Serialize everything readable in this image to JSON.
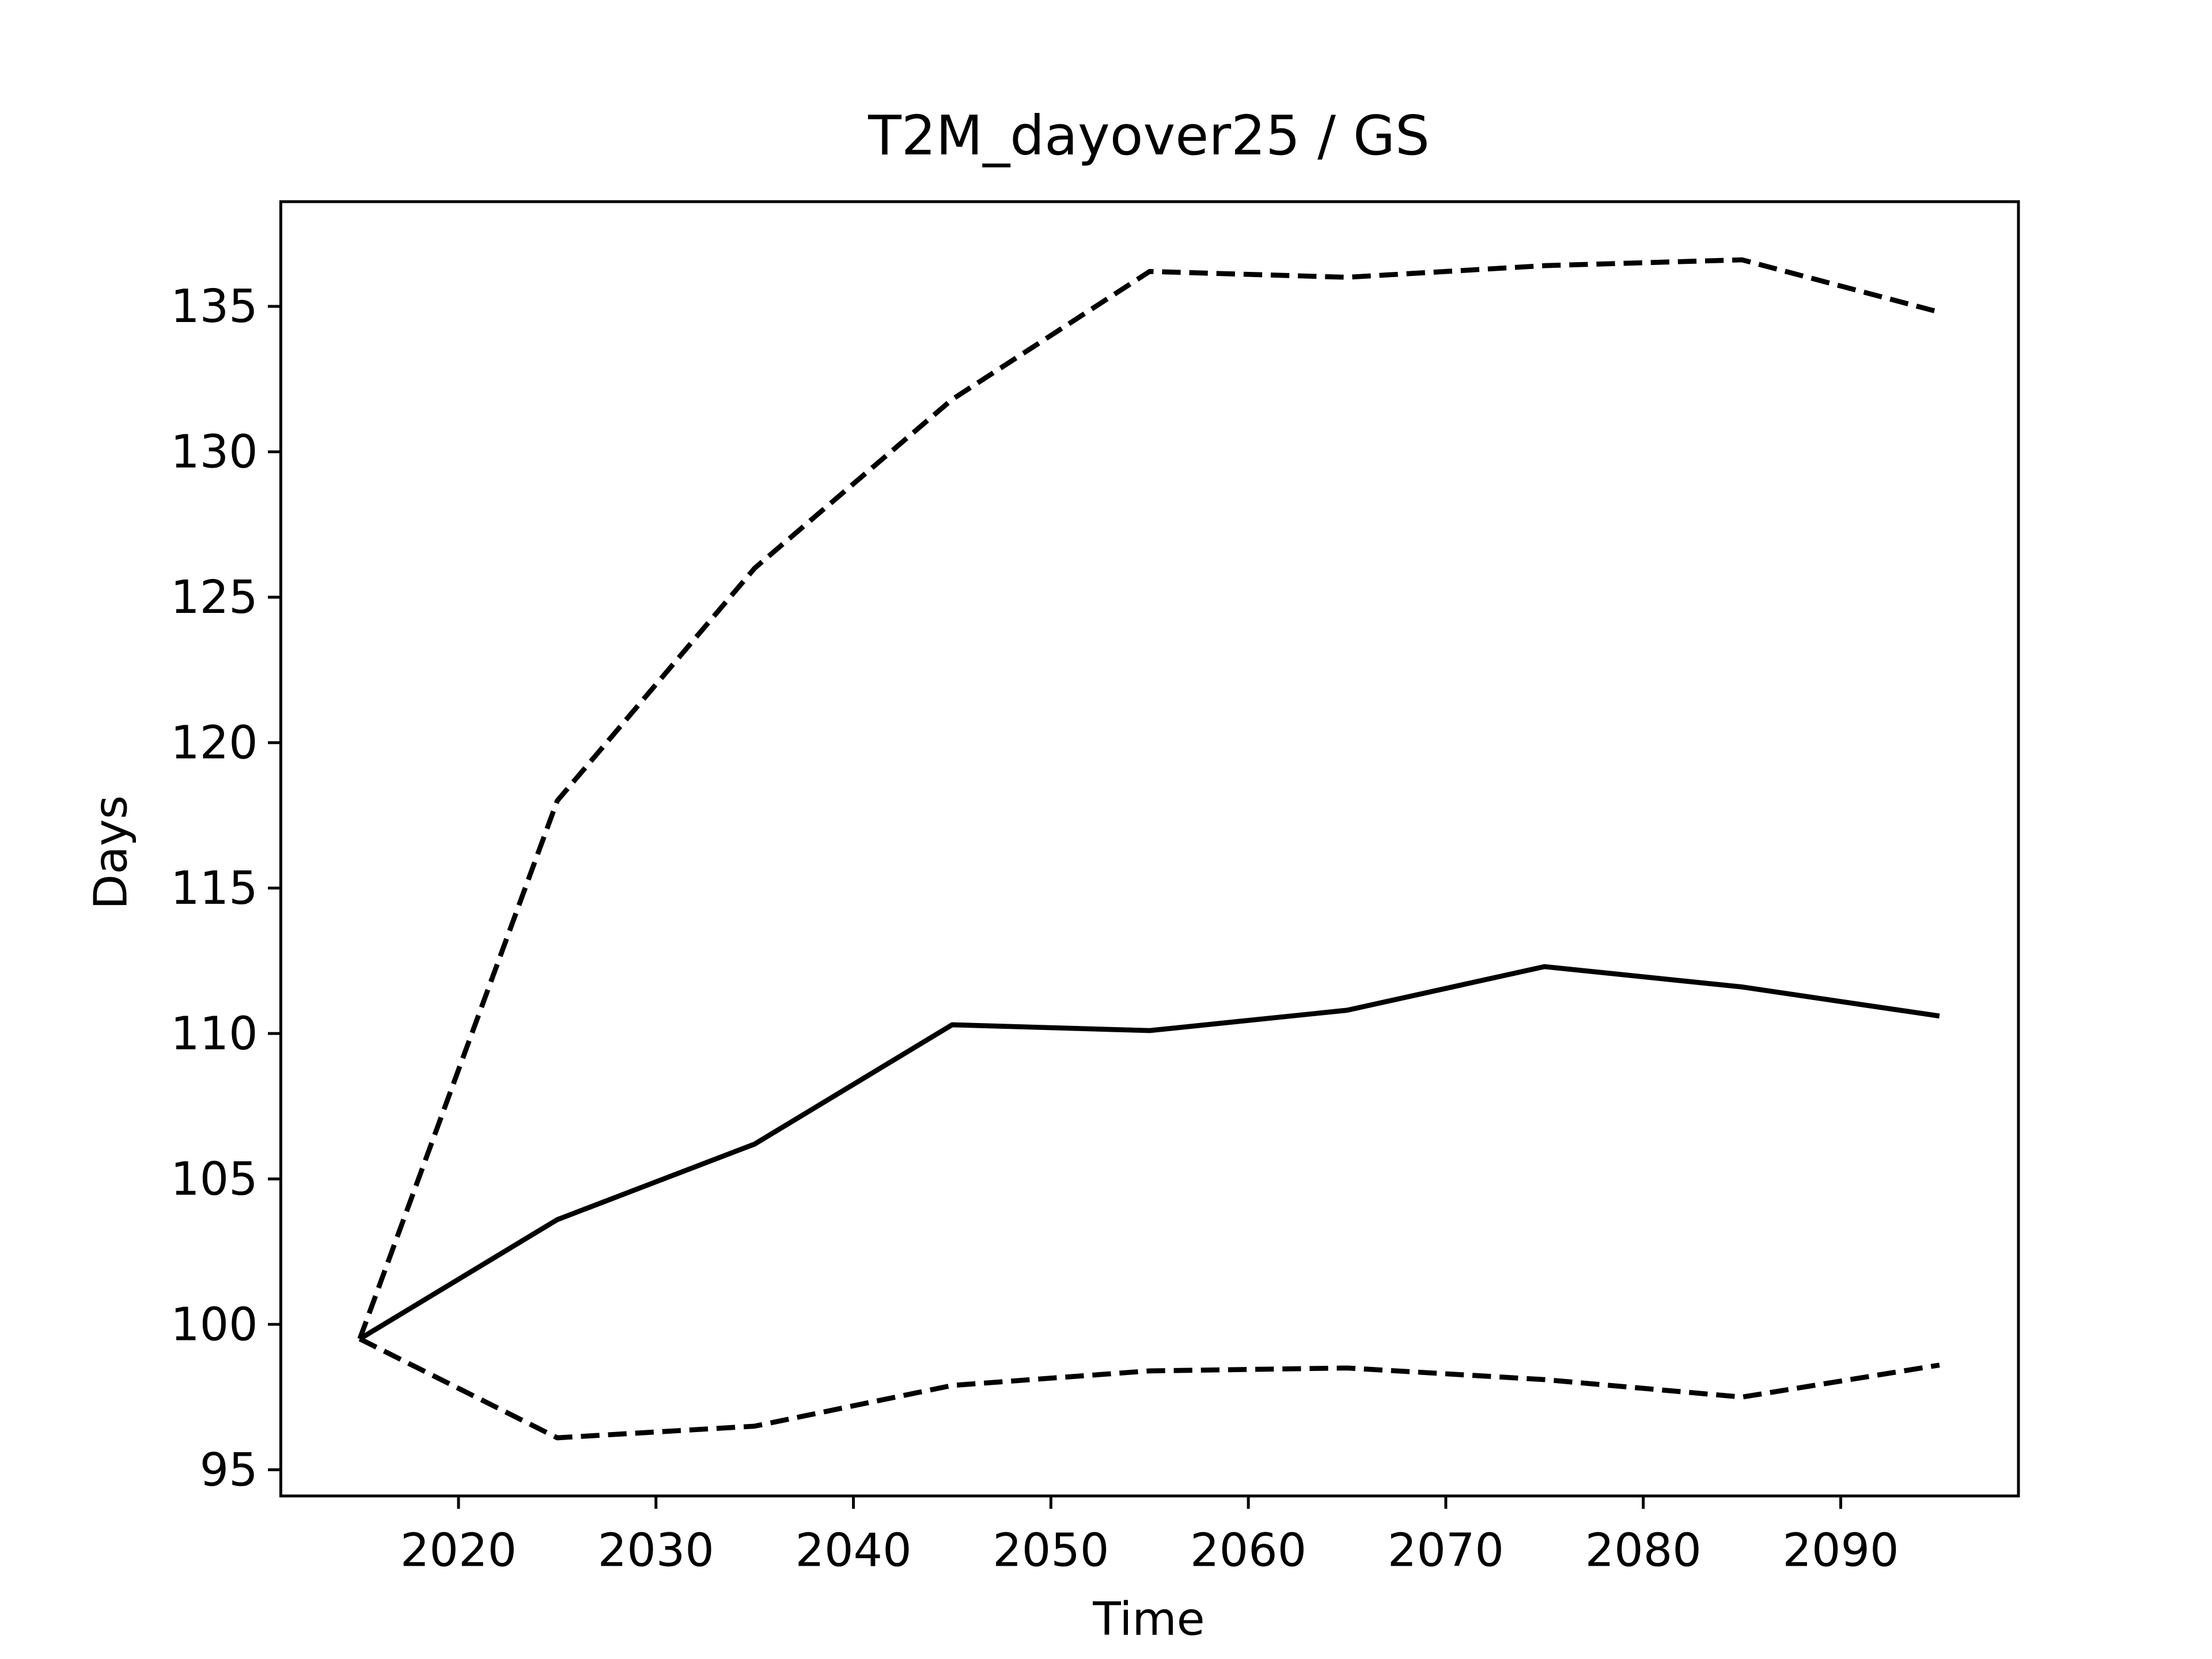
{
  "chart_data": {
    "type": "line",
    "title": "T2M_dayover25 / GS",
    "xlabel": "Time",
    "ylabel": "Days",
    "x": [
      2015,
      2025,
      2035,
      2045,
      2055,
      2065,
      2075,
      2085,
      2095
    ],
    "series": [
      {
        "color": "#000000",
        "linestyle": "solid",
        "values": [
          99.5,
          103.6,
          106.2,
          110.3,
          110.1,
          110.8,
          112.3,
          111.6,
          110.6
        ]
      },
      {
        "color": "#000000",
        "linestyle": "dashed",
        "values": [
          99.5,
          118.0,
          126.0,
          131.8,
          136.2,
          136.0,
          136.4,
          136.6,
          134.8
        ]
      },
      {
        "color": "#000000",
        "linestyle": "dashed",
        "values": [
          99.5,
          96.1,
          96.5,
          97.9,
          98.4,
          98.5,
          98.1,
          97.5,
          98.6
        ]
      }
    ],
    "xlim": [
      2011,
      2099
    ],
    "xticks": [
      2020,
      2030,
      2040,
      2050,
      2060,
      2070,
      2080,
      2090
    ],
    "ylim": [
      94.1,
      138.6
    ],
    "yticks": [
      95,
      100,
      105,
      110,
      115,
      120,
      125,
      130,
      135
    ],
    "grid": false
  }
}
